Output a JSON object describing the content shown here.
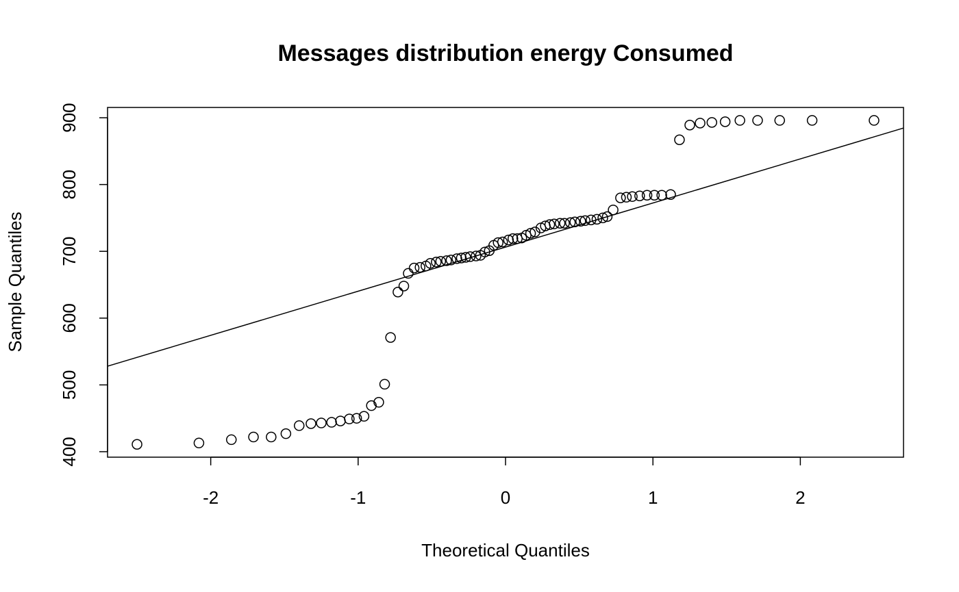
{
  "chart_data": {
    "type": "scatter",
    "title": "Messages distribution energy Consumed",
    "x_label": "Theoretical Quantiles",
    "y_label": "Sample Quantiles",
    "x": [
      -2.5,
      -2.08,
      -1.86,
      -1.71,
      -1.59,
      -1.49,
      -1.4,
      -1.32,
      -1.25,
      -1.18,
      -1.12,
      -1.06,
      -1.01,
      -0.96,
      -0.91,
      -0.86,
      -0.82,
      -0.78,
      -0.73,
      -0.69,
      -0.66,
      -0.62,
      -0.58,
      -0.54,
      -0.51,
      -0.47,
      -0.44,
      -0.4,
      -0.37,
      -0.33,
      -0.3,
      -0.27,
      -0.24,
      -0.2,
      -0.17,
      -0.14,
      -0.11,
      -0.08,
      -0.05,
      -0.02,
      0.02,
      0.05,
      0.08,
      0.11,
      0.14,
      0.17,
      0.2,
      0.24,
      0.27,
      0.3,
      0.33,
      0.37,
      0.4,
      0.44,
      0.47,
      0.51,
      0.54,
      0.58,
      0.62,
      0.66,
      0.69,
      0.73,
      0.78,
      0.82,
      0.86,
      0.91,
      0.96,
      1.01,
      1.06,
      1.12,
      1.18,
      1.25,
      1.32,
      1.4,
      1.49,
      1.59,
      1.71,
      1.86,
      2.08,
      2.5
    ],
    "values": [
      411,
      413,
      418,
      422,
      422,
      427,
      439,
      442,
      443,
      444,
      446,
      449,
      450,
      453,
      469,
      474,
      501,
      571,
      639,
      648,
      667,
      675,
      676,
      678,
      682,
      684,
      685,
      686,
      687,
      689,
      690,
      691,
      692,
      693,
      694,
      699,
      701,
      709,
      713,
      714,
      717,
      719,
      719,
      720,
      724,
      727,
      729,
      735,
      738,
      740,
      741,
      742,
      742,
      743,
      744,
      745,
      746,
      747,
      748,
      750,
      752,
      762,
      780,
      781,
      782,
      783,
      784,
      784,
      784,
      785,
      867,
      889,
      892,
      893,
      894,
      896,
      896,
      896,
      896,
      896
    ],
    "color": "#000000",
    "reference_line": {
      "x": [
        -2.7,
        2.7
      ],
      "values": [
        528,
        884.6
      ]
    },
    "xlim": [
      -2.7,
      2.7
    ],
    "ylim": [
      391.8,
      915.4
    ],
    "xticks": [
      -2,
      -1,
      0,
      1,
      2
    ],
    "yticks": [
      400,
      500,
      600,
      700,
      800,
      900
    ]
  }
}
